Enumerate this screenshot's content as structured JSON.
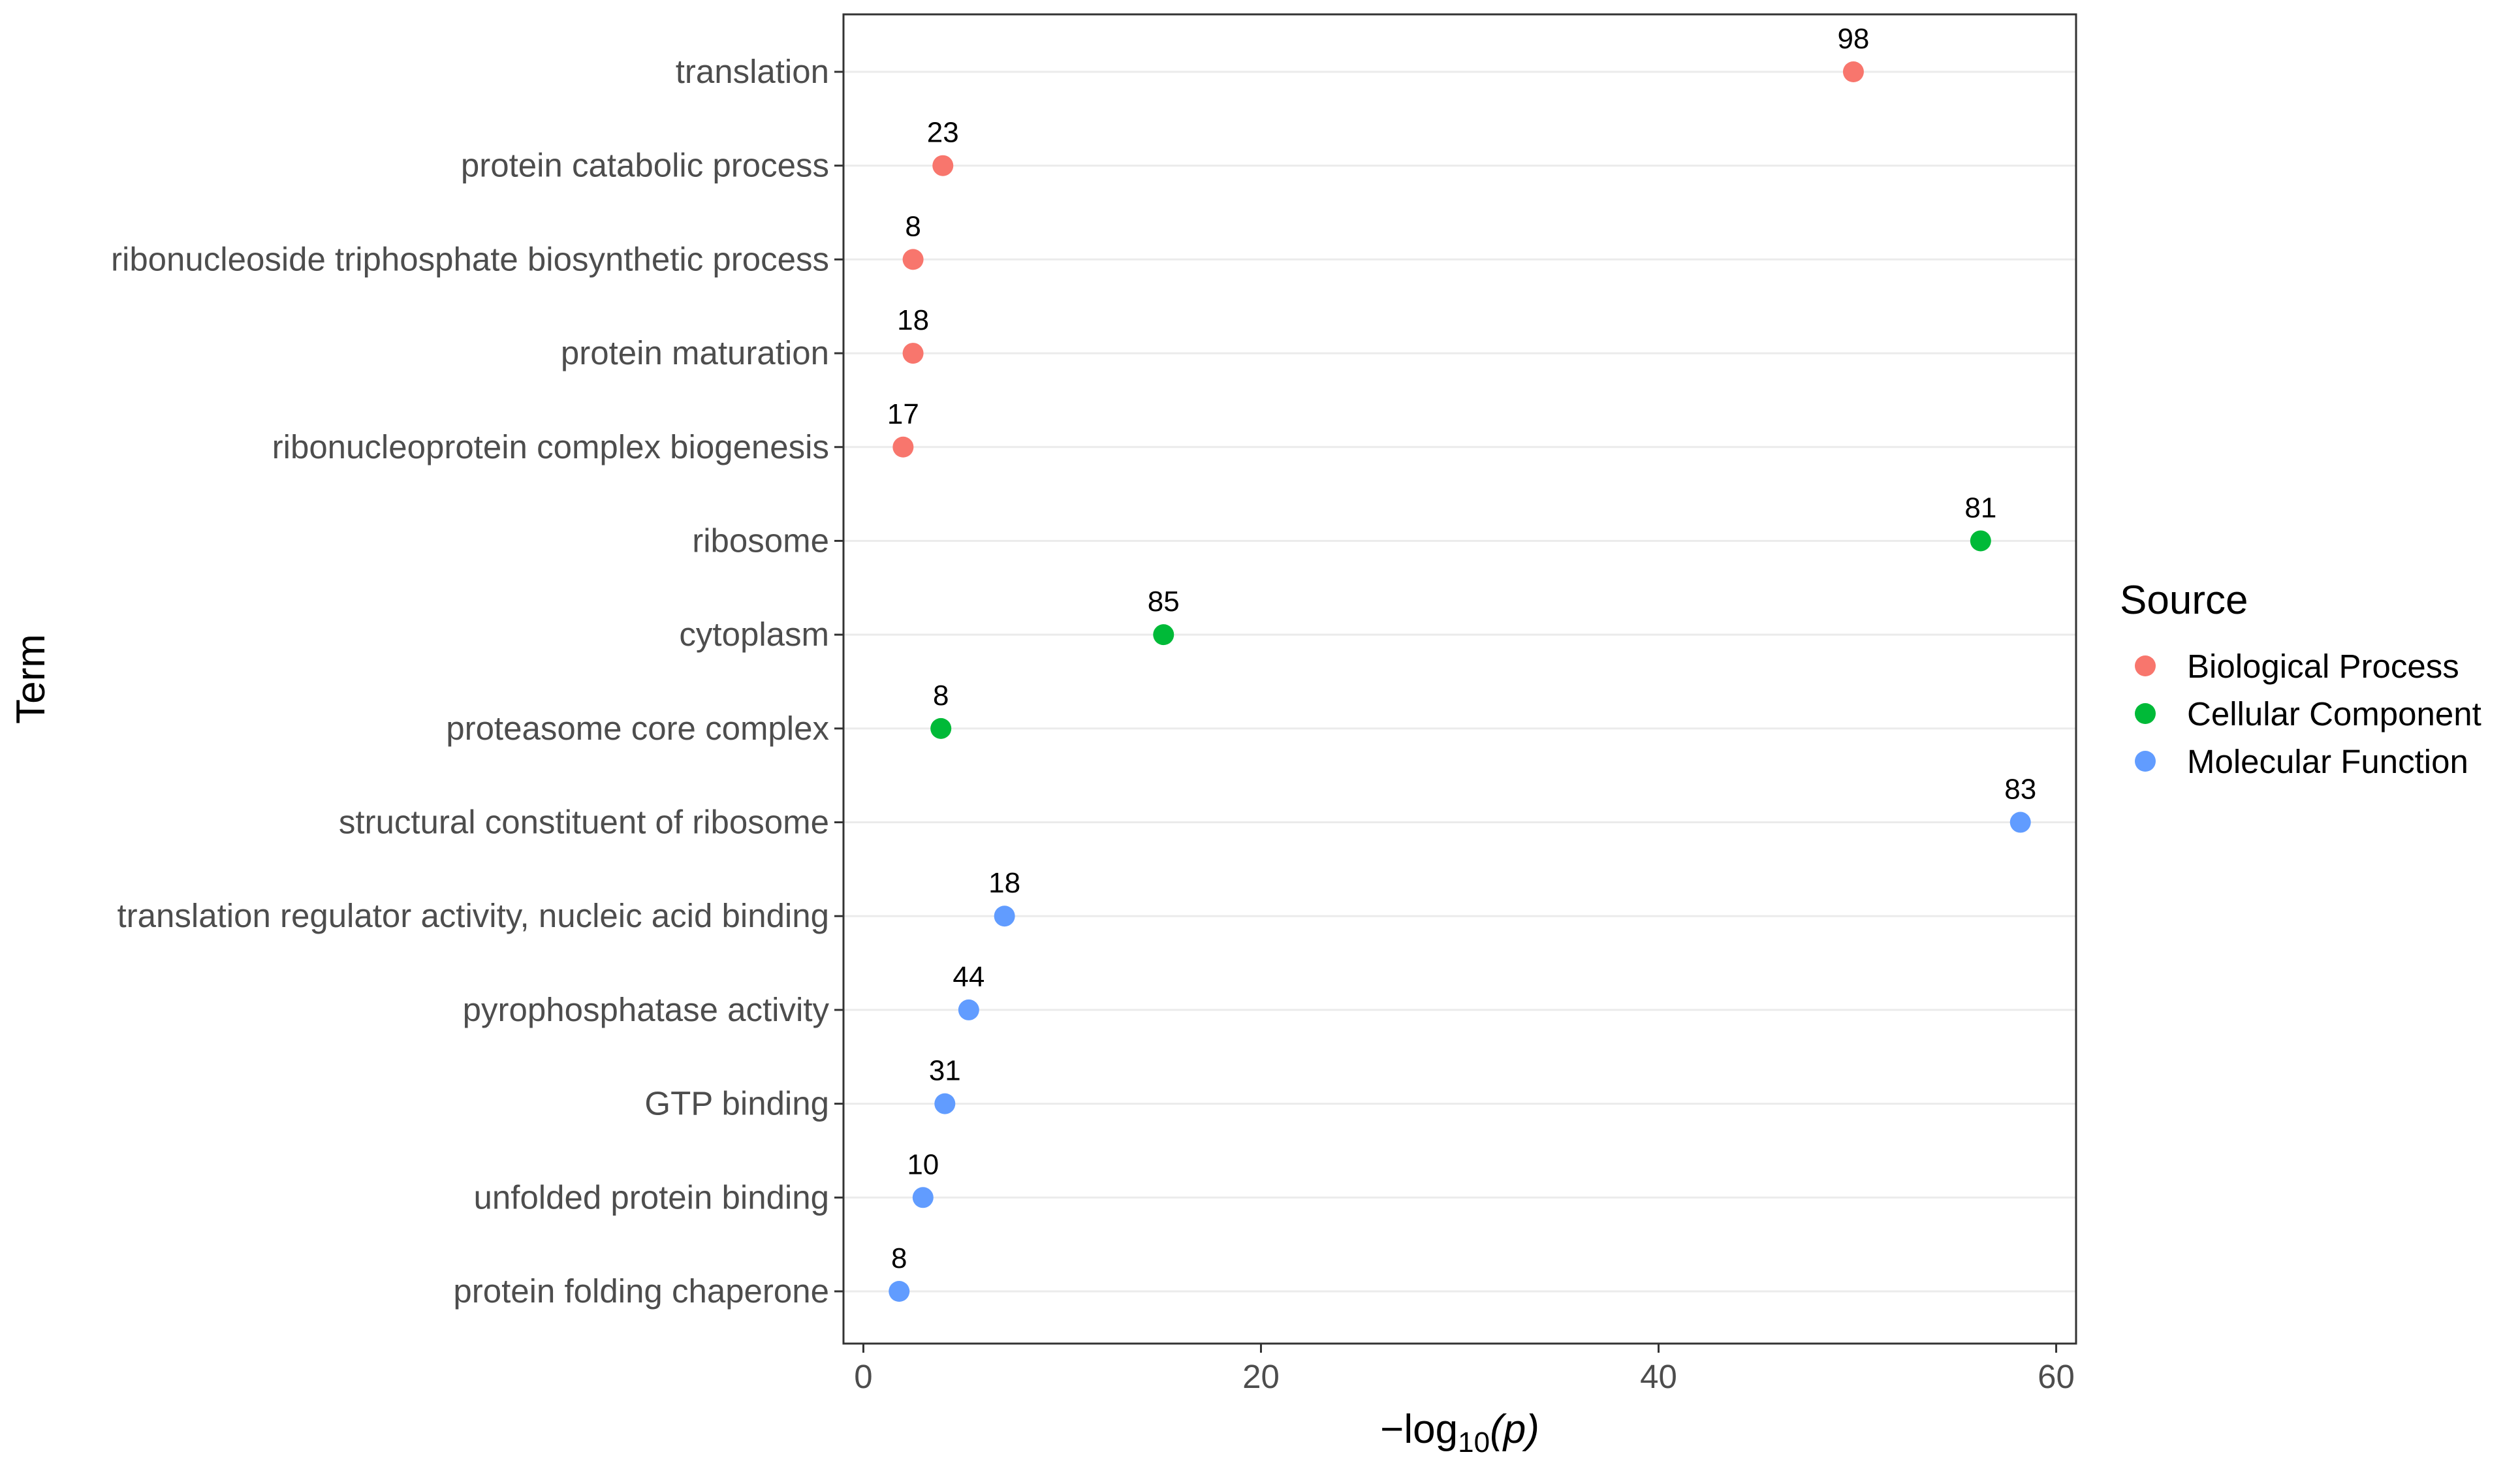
{
  "chart_data": {
    "type": "scatter",
    "xlabel_prefix": "−log",
    "xlabel_sub": "10",
    "xlabel_suffix": "(p)",
    "ylabel": "Term",
    "xlim": [
      -1,
      61
    ],
    "x_ticks": [
      0,
      20,
      40,
      60
    ],
    "grid": "horizontal-major",
    "legend": {
      "title": "Source",
      "position": "right",
      "entries": [
        {
          "name": "Biological Process",
          "color": "#F8766D"
        },
        {
          "name": "Cellular Component",
          "color": "#00BA38"
        },
        {
          "name": "Molecular Function",
          "color": "#619CFF"
        }
      ]
    },
    "points": [
      {
        "term": "translation",
        "x": 49.8,
        "label": "98",
        "source": "Biological Process"
      },
      {
        "term": "protein catabolic process",
        "x": 4.0,
        "label": "23",
        "source": "Biological Process"
      },
      {
        "term": "ribonucleoside triphosphate biosynthetic process",
        "x": 2.5,
        "label": "8",
        "source": "Biological Process"
      },
      {
        "term": "protein maturation",
        "x": 2.5,
        "label": "18",
        "source": "Biological Process"
      },
      {
        "term": "ribonucleoprotein complex biogenesis",
        "x": 2.0,
        "label": "17",
        "source": "Biological Process"
      },
      {
        "term": "ribosome",
        "x": 56.2,
        "label": "81",
        "source": "Cellular Component"
      },
      {
        "term": "cytoplasm",
        "x": 15.1,
        "label": "85",
        "source": "Cellular Component"
      },
      {
        "term": "proteasome core complex",
        "x": 3.9,
        "label": "8",
        "source": "Cellular Component"
      },
      {
        "term": "structural constituent of ribosome",
        "x": 58.2,
        "label": "83",
        "source": "Molecular Function"
      },
      {
        "term": "translation regulator activity, nucleic acid binding",
        "x": 7.1,
        "label": "18",
        "source": "Molecular Function"
      },
      {
        "term": "pyrophosphatase activity",
        "x": 5.3,
        "label": "44",
        "source": "Molecular Function"
      },
      {
        "term": "GTP binding",
        "x": 4.1,
        "label": "31",
        "source": "Molecular Function"
      },
      {
        "term": "unfolded protein binding",
        "x": 3.0,
        "label": "10",
        "source": "Molecular Function"
      },
      {
        "term": "protein folding chaperone",
        "x": 1.8,
        "label": "8",
        "source": "Molecular Function"
      }
    ]
  }
}
